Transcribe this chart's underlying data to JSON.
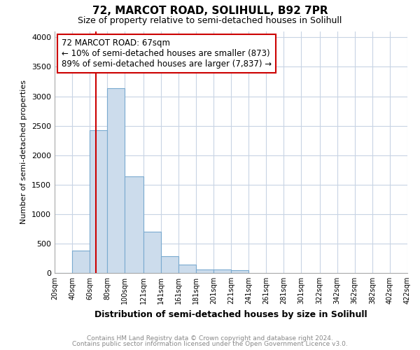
{
  "title": "72, MARCOT ROAD, SOLIHULL, B92 7PR",
  "subtitle": "Size of property relative to semi-detached houses in Solihull",
  "xlabel": "Distribution of semi-detached houses by size in Solihull",
  "ylabel": "Number of semi-detached properties",
  "footer_line1": "Contains HM Land Registry data © Crown copyright and database right 2024.",
  "footer_line2": "Contains public sector information licensed under the Open Government Licence v3.0.",
  "bin_edges": [
    20,
    40,
    60,
    80,
    100,
    121,
    141,
    161,
    181,
    201,
    221,
    241,
    261,
    281,
    301,
    322,
    342,
    362,
    382,
    402,
    422
  ],
  "bar_heights": [
    5,
    375,
    2430,
    3140,
    1640,
    700,
    290,
    140,
    60,
    55,
    45,
    0,
    0,
    0,
    0,
    0,
    0,
    0,
    0,
    0
  ],
  "bar_color": "#ccdcec",
  "bar_edge_color": "#7aaad0",
  "grid_color": "#c8d4e4",
  "property_size": 67,
  "vline_color": "#cc0000",
  "annotation_text": "72 MARCOT ROAD: 67sqm\n← 10% of semi-detached houses are smaller (873)\n89% of semi-detached houses are larger (7,837) →",
  "annotation_box_color": "#cc0000",
  "annotation_bg": "#ffffff",
  "ylim": [
    0,
    4100
  ],
  "yticks": [
    0,
    500,
    1000,
    1500,
    2000,
    2500,
    3000,
    3500,
    4000
  ],
  "background_color": "#ffffff"
}
